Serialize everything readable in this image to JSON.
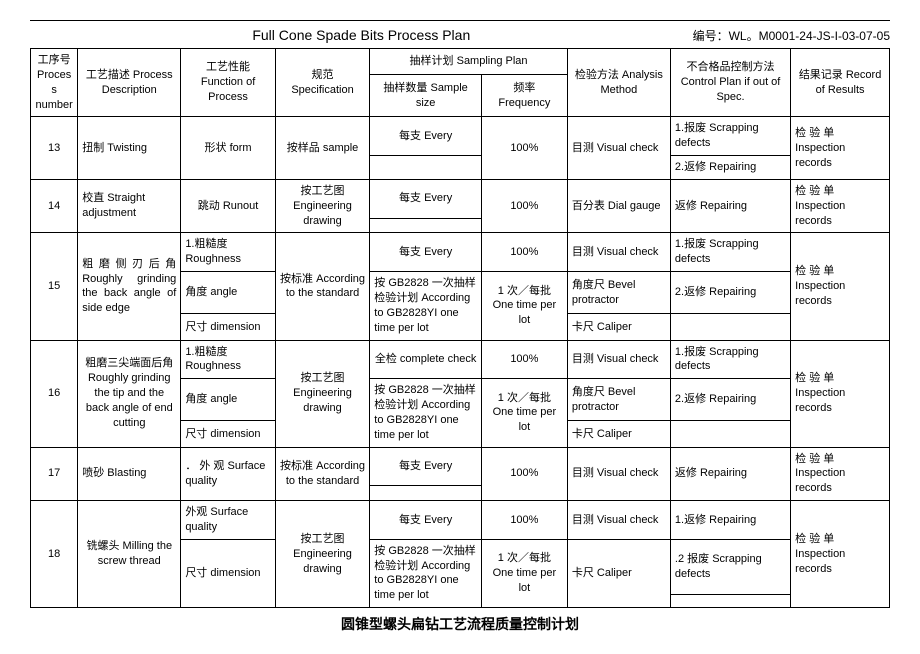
{
  "header": {
    "title": "Full Cone Spade Bits Process Plan",
    "docno_label": "编号：",
    "docno": "WL。M0001-24-JS-I-03-07-05"
  },
  "columns": {
    "num": "工序号\nProcess number",
    "desc": "工艺描述\nProcess Description",
    "func": "工艺性能\nFunction of Process",
    "spec": "规范\nSpecification",
    "sampling": "抽样计划 Sampling Plan",
    "ss": "抽样数量\nSample size",
    "freq": "频率\nFrequency",
    "anal": "检验方法\nAnalysis Method",
    "ctrl": "不合格品控制方法\nControl Plan if out of Spec.",
    "res": "结果记录\nRecord of Results"
  },
  "text": {
    "every": "每支 Every",
    "pct100": "100%",
    "visual": "目测 Visual check",
    "dial": "百分表 Dial gauge",
    "bevel": "角度尺 Bevel protractor",
    "caliper": "卡尺 Caliper",
    "scrap": "1.报废 Scrapping defects",
    "repair2": "2.返修 Repairing",
    "repair": "返修 Repairing",
    "repair1": "1.返修 Repairing",
    "scrap2b": ".2 报废 Scrapping defects",
    "insp": "检 验 单  Inspection records",
    "sample": "按样品 sample",
    "engdraw": "按工艺图\nEngineering drawing",
    "standard": "按标准\nAccording to the standard",
    "gb2828": "按 GB2828 一次抽样检验计划 According to GB2828YI   one time per lot",
    "oneper": "1 次／每批\nOne time per lot",
    "complete": "全检 complete check",
    "form": "形状 form",
    "runout": "跳动 Runout",
    "rough": "1.粗糙度\nRoughness",
    "angle": "角度 angle",
    "dim": "尺寸 dimension",
    "surface_dot": "． 外 观  Surface quality",
    "surface": "外观 Surface quality"
  },
  "rows": {
    "r13": {
      "num": "13",
      "desc": "扭制  Twisting"
    },
    "r14": {
      "num": "14",
      "desc": "校直 Straight adjustment"
    },
    "r15": {
      "num": "15",
      "desc": "粗磨侧刃后角 Roughly  grinding the back angle of side edge"
    },
    "r16": {
      "num": "16",
      "desc": "粗磨三尖端面后角\nRoughly grinding the tip and the back angle of end cutting"
    },
    "r17": {
      "num": "17",
      "desc": "喷砂 Blasting"
    },
    "r18": {
      "num": "18",
      "desc": "铣螺头 Milling the screw thread"
    }
  },
  "footer": "圆锥型螺头扁钻工艺流程质量控制计划"
}
